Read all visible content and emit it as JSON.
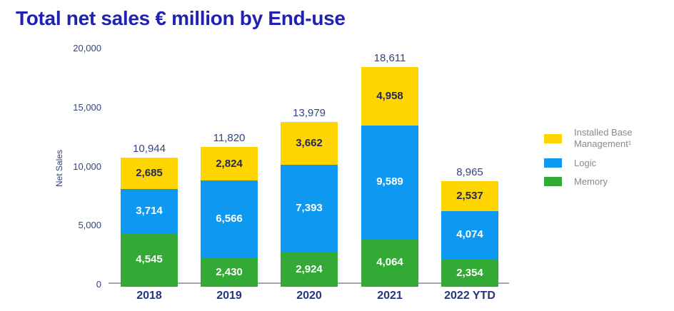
{
  "title": "Total net sales € million by End-use",
  "colors": {
    "title": "#2121B0",
    "axis_text": "#35447E",
    "axis_line": "#A6A6A6",
    "memory_green": "#33A936",
    "logic_blue": "#0D99F2",
    "ibm_yellow": "#FFD500",
    "label_on_yellow": "#232B55",
    "label_on_blue_green": "#FFFFFF",
    "legend_text": "#8A8A8A"
  },
  "chart_data": {
    "type": "bar",
    "stacked": true,
    "title": "Total net sales € million by End-use",
    "xlabel": "",
    "ylabel": "Net Sales",
    "ylim": [
      0,
      20000
    ],
    "grid": false,
    "legend_position": "right",
    "categories": [
      "2018",
      "2019",
      "2020",
      "2021",
      "2022 YTD"
    ],
    "series": [
      {
        "name": "Memory",
        "color": "#33A936",
        "label_color": "#FFFFFF",
        "values": [
          4545,
          2430,
          2924,
          4064,
          2354
        ]
      },
      {
        "name": "Logic",
        "color": "#0D99F2",
        "label_color": "#FFFFFF",
        "values": [
          3714,
          6566,
          7393,
          9589,
          4074
        ]
      },
      {
        "name": "Installed Base Management¹",
        "color": "#FFD500",
        "label_color": "#232B55",
        "values": [
          2685,
          2824,
          3662,
          4958,
          2537
        ]
      }
    ],
    "totals": [
      10944,
      11820,
      13979,
      18611,
      8965
    ],
    "yticks": [
      0,
      5000,
      10000,
      15000,
      20000
    ]
  },
  "legend": {
    "items": [
      {
        "label": "Installed Base Management¹",
        "color": "#FFD500"
      },
      {
        "label": "Logic",
        "color": "#0D99F2"
      },
      {
        "label": "Memory",
        "color": "#33A936"
      }
    ]
  }
}
